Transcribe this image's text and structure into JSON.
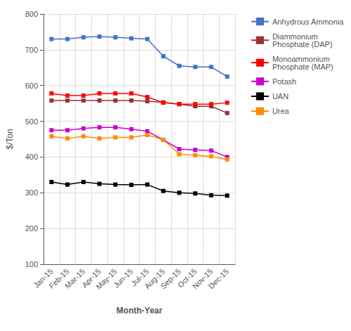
{
  "chart_data": {
    "type": "line",
    "xlabel": "Month-Year",
    "ylabel": "$/Ton",
    "categories": [
      "Jan-15",
      "Feb-15",
      "Mar-15",
      "Apr-15",
      "May-15",
      "Jun-15",
      "Jul-15",
      "Aug-15",
      "Sep-15",
      "Oct-15",
      "Nov-15",
      "Dec-15"
    ],
    "ylim": [
      100,
      800
    ],
    "yticks": [
      100,
      200,
      300,
      400,
      500,
      600,
      700,
      800
    ],
    "grid": true,
    "legend": "right",
    "series": [
      {
        "name": "Anhydrous Ammonia",
        "color": "#4472C4",
        "marker": "square",
        "values": [
          730,
          730,
          735,
          737,
          735,
          732,
          730,
          682,
          655,
          652,
          652,
          625
        ]
      },
      {
        "name": "Diammonium\nPhosphate (DAP)",
        "color": "#9B3132",
        "marker": "square",
        "values": [
          558,
          558,
          558,
          558,
          558,
          558,
          556,
          553,
          548,
          542,
          542,
          523
        ]
      },
      {
        "name": "Monoammonium\nPhosphate (MAP)",
        "color": "#FF0000",
        "marker": "square",
        "values": [
          578,
          572,
          572,
          578,
          578,
          578,
          568,
          552,
          548,
          548,
          548,
          552
        ]
      },
      {
        "name": "Potash",
        "color": "#CC00CC",
        "marker": "square",
        "values": [
          475,
          475,
          480,
          483,
          483,
          478,
          472,
          448,
          422,
          420,
          418,
          400
        ]
      },
      {
        "name": "UAN",
        "color": "#000000",
        "marker": "square",
        "values": [
          330,
          323,
          330,
          325,
          323,
          322,
          323,
          305,
          300,
          298,
          293,
          292
        ]
      },
      {
        "name": "Urea",
        "color": "#FF8C00",
        "marker": "square",
        "values": [
          458,
          452,
          458,
          452,
          455,
          455,
          462,
          448,
          408,
          405,
          402,
          393
        ]
      }
    ]
  }
}
